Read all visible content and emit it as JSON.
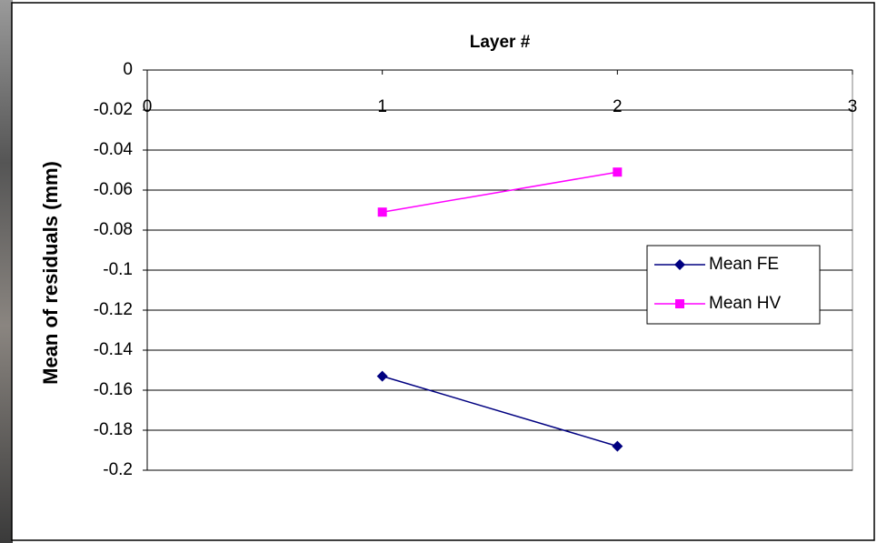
{
  "chart_data": {
    "type": "line",
    "x_label": "Layer #",
    "y_label": "Mean of residuals (mm)",
    "x": [
      1,
      2
    ],
    "series": [
      {
        "name": "Mean FE",
        "color": "#000080",
        "marker": "diamond",
        "values": [
          -0.153,
          -0.188
        ]
      },
      {
        "name": "Mean HV",
        "color": "#ff00ff",
        "marker": "square",
        "values": [
          -0.071,
          -0.051
        ]
      }
    ],
    "xlim": [
      0,
      3
    ],
    "xticks": [
      0,
      1,
      2,
      3
    ],
    "ylim": [
      -0.2,
      0
    ],
    "yticks": [
      0,
      -0.02,
      -0.04,
      -0.06,
      -0.08,
      -0.1,
      -0.12,
      -0.14,
      -0.16,
      -0.18,
      -0.2
    ],
    "grid": true,
    "legend": "right"
  }
}
